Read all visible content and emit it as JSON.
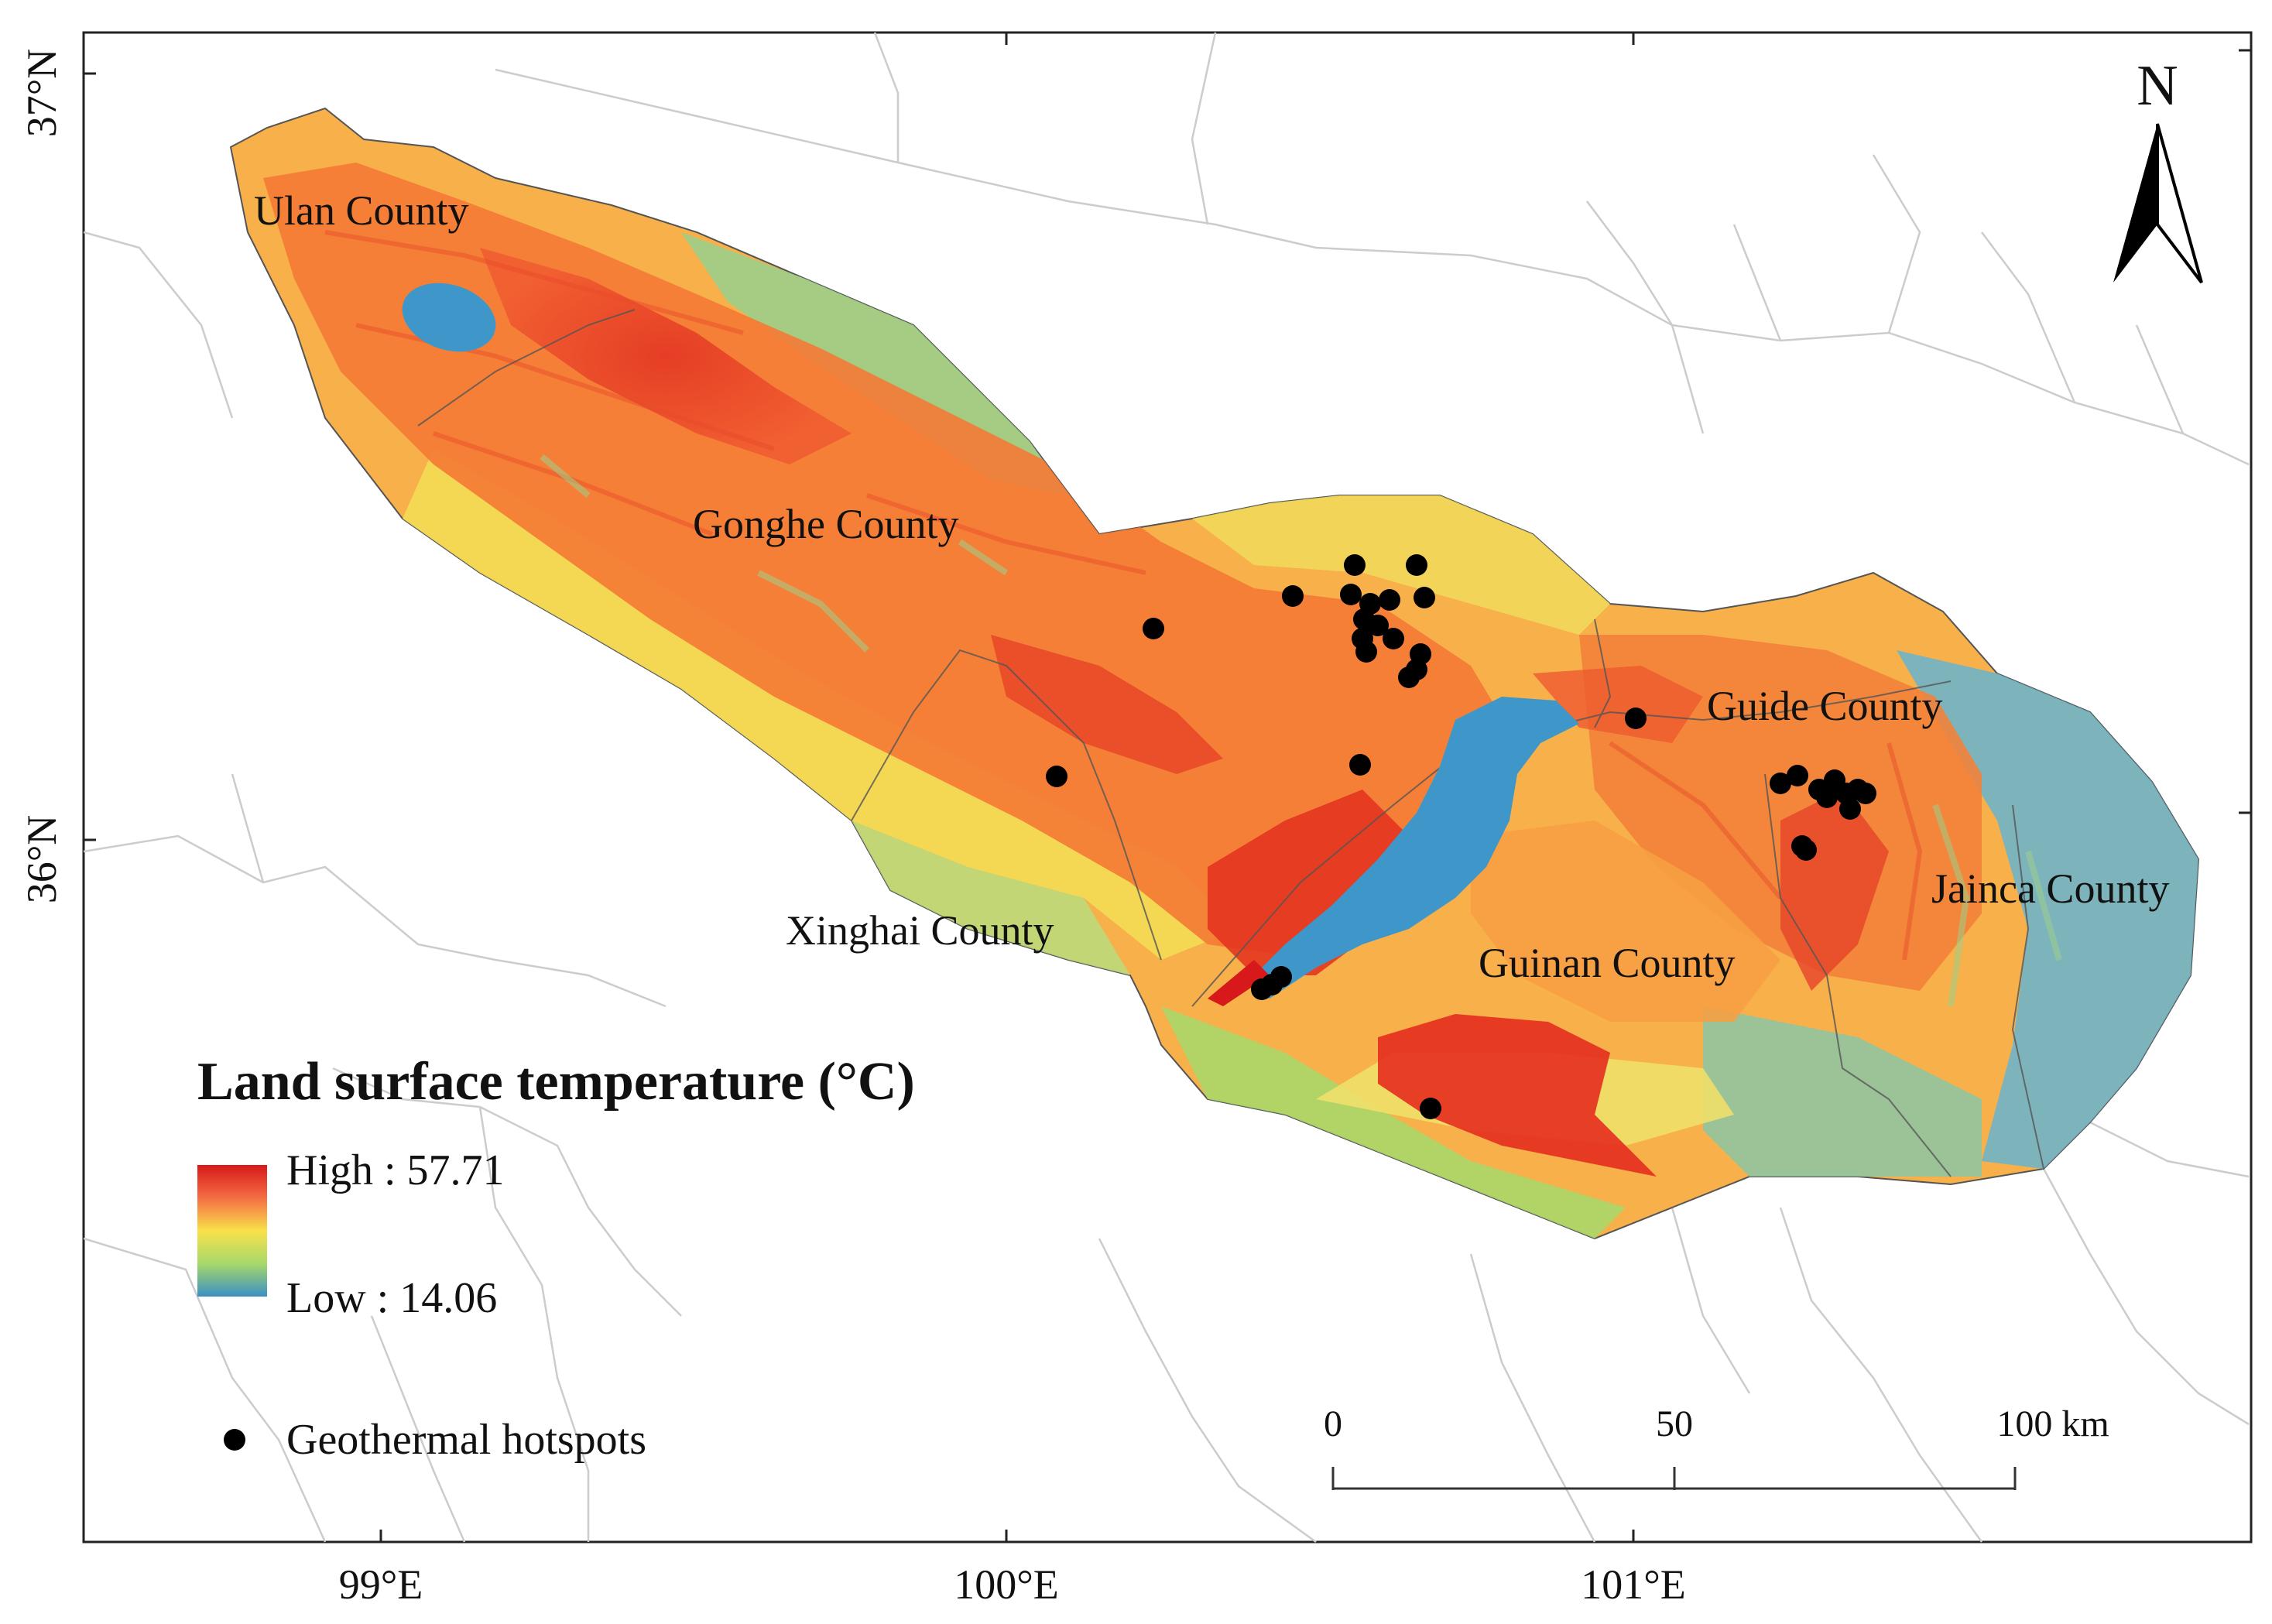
{
  "map": {
    "north_label": "N",
    "counties": [
      {
        "name": "Ulan County"
      },
      {
        "name": "Gonghe County"
      },
      {
        "name": "Guide County"
      },
      {
        "name": "Xinghai County"
      },
      {
        "name": "Guinan County"
      },
      {
        "name": "Jainca County"
      }
    ],
    "lat_labels": [
      "37°N",
      "36°N"
    ],
    "lon_labels": [
      "99°E",
      "100°E",
      "101°E"
    ],
    "legend": {
      "title": "Land surface temperature (°C)",
      "high_label": "High : 57.71",
      "low_label": "Low : 14.06",
      "high_value": 57.71,
      "low_value": 14.06,
      "hotspots_label": "Geothermal hotspots"
    },
    "scale_bar": {
      "ticks": [
        "0",
        "50",
        "100 km"
      ]
    },
    "colors": {
      "high": "#d7261e",
      "mid_high": "#f46d43",
      "mid": "#f9e14a",
      "mid_low": "#a6d96a",
      "low": "#3288bd",
      "lake": "#3f97c9",
      "hotspot": "#000000",
      "boundary": "#c8c8c8"
    }
  }
}
